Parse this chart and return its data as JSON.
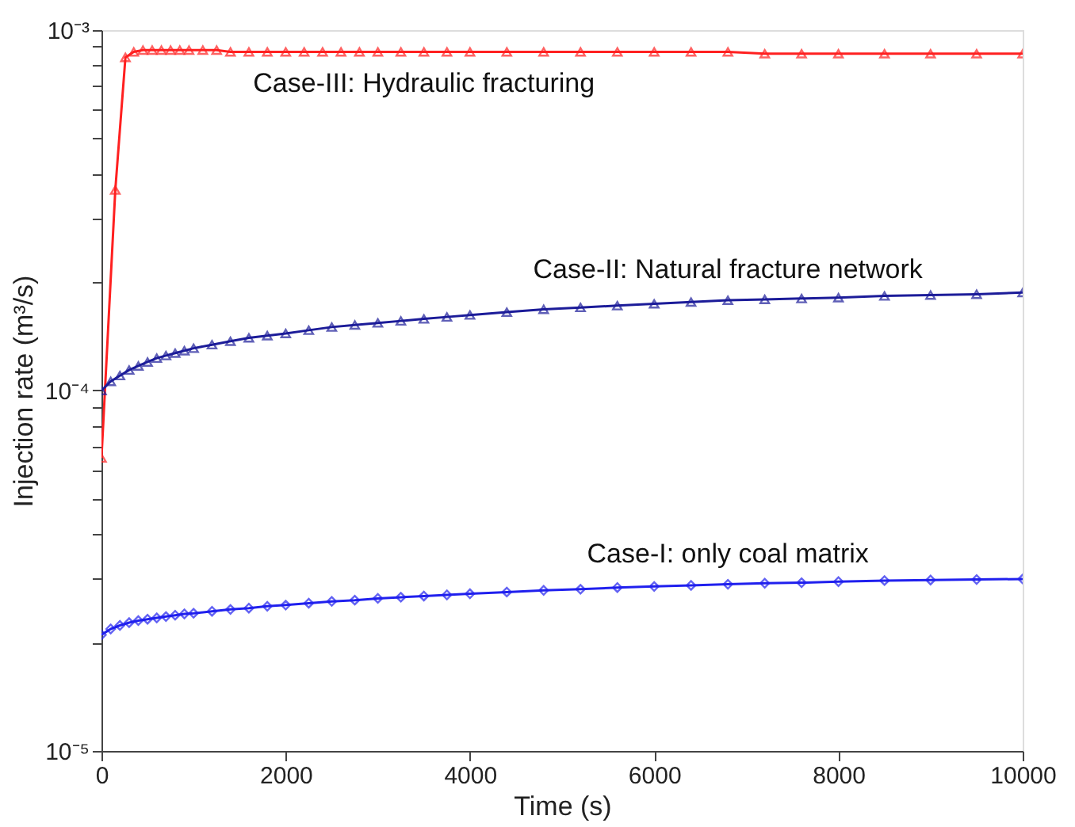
{
  "chart_data": {
    "type": "line",
    "xlabel": "Time (s)",
    "ylabel": "Injection rate (m³/s)",
    "log": "y",
    "grid": false,
    "xlim": [
      0,
      10000
    ],
    "xticks": [
      0,
      2000,
      4000,
      6000,
      8000,
      10000
    ],
    "ylim": [
      1e-05,
      0.001
    ],
    "yticks": [
      {
        "value": 1e-05,
        "label": "10⁻⁵"
      },
      {
        "value": 2e-05,
        "label": null
      },
      {
        "value": 3e-05,
        "label": null
      },
      {
        "value": 4e-05,
        "label": null
      },
      {
        "value": 5e-05,
        "label": null
      },
      {
        "value": 6e-05,
        "label": null
      },
      {
        "value": 7e-05,
        "label": null
      },
      {
        "value": 8e-05,
        "label": null
      },
      {
        "value": 9e-05,
        "label": null
      },
      {
        "value": 0.0001,
        "label": "10⁻⁴"
      },
      {
        "value": 0.0002,
        "label": null
      },
      {
        "value": 0.0003,
        "label": null
      },
      {
        "value": 0.0004,
        "label": null
      },
      {
        "value": 0.0005,
        "label": null
      },
      {
        "value": 0.0006,
        "label": null
      },
      {
        "value": 0.0007,
        "label": null
      },
      {
        "value": 0.0008,
        "label": null
      },
      {
        "value": 0.0009,
        "label": null
      },
      {
        "value": 0.001,
        "label": "10⁻³"
      }
    ],
    "series": [
      {
        "name": "Case-III: Hydraulic fracturing",
        "color": "#ff2020",
        "marker": "triangle",
        "x": [
          0,
          150,
          260,
          350,
          450,
          550,
          650,
          750,
          850,
          950,
          1100,
          1250,
          1400,
          1600,
          1800,
          2000,
          2200,
          2400,
          2600,
          2800,
          3000,
          3250,
          3500,
          3750,
          4000,
          4400,
          4800,
          5200,
          5600,
          6000,
          6400,
          6800,
          7200,
          7600,
          8000,
          8500,
          9000,
          9500,
          10000
        ],
        "values": [
          6.5e-05,
          0.00036,
          0.00084,
          0.00087,
          0.00088,
          0.00088,
          0.00088,
          0.00088,
          0.00088,
          0.00088,
          0.00088,
          0.00088,
          0.00087,
          0.00087,
          0.00087,
          0.00087,
          0.00087,
          0.00087,
          0.00087,
          0.00087,
          0.00087,
          0.00087,
          0.00087,
          0.00087,
          0.00087,
          0.00087,
          0.00087,
          0.00087,
          0.00087,
          0.00087,
          0.00087,
          0.00087,
          0.00086,
          0.00086,
          0.00086,
          0.00086,
          0.00086,
          0.00086,
          0.00086
        ]
      },
      {
        "name": "Case-II: Natural fracture network",
        "color": "#1c1c99",
        "marker": "triangle",
        "x": [
          0,
          100,
          200,
          300,
          400,
          500,
          600,
          700,
          800,
          900,
          1000,
          1200,
          1400,
          1600,
          1800,
          2000,
          2250,
          2500,
          2750,
          3000,
          3250,
          3500,
          3750,
          4000,
          4400,
          4800,
          5200,
          5600,
          6000,
          6400,
          6800,
          7200,
          7600,
          8000,
          8500,
          9000,
          9500,
          10000
        ],
        "values": [
          0.0001,
          0.000106,
          0.00011,
          0.000114,
          0.000117,
          0.00012,
          0.000123,
          0.000125,
          0.000127,
          0.000129,
          0.000131,
          0.000134,
          0.000137,
          0.00014,
          0.000142,
          0.000144,
          0.000147,
          0.00015,
          0.000152,
          0.000154,
          0.000156,
          0.000158,
          0.00016,
          0.000162,
          0.000165,
          0.000168,
          0.00017,
          0.000172,
          0.000174,
          0.000176,
          0.000178,
          0.000179,
          0.00018,
          0.000181,
          0.000183,
          0.000184,
          0.000185,
          0.000187
        ]
      },
      {
        "name": "Case-I: only coal matrix",
        "color": "#2020ee",
        "marker": "diamond",
        "x": [
          0,
          100,
          200,
          300,
          400,
          500,
          600,
          700,
          800,
          900,
          1000,
          1200,
          1400,
          1600,
          1800,
          2000,
          2250,
          2500,
          2750,
          3000,
          3250,
          3500,
          3750,
          4000,
          4400,
          4800,
          5200,
          5600,
          6000,
          6400,
          6800,
          7200,
          7600,
          8000,
          8500,
          9000,
          9500,
          10000
        ],
        "values": [
          2.1e-05,
          2.18e-05,
          2.23e-05,
          2.27e-05,
          2.3e-05,
          2.32e-05,
          2.34e-05,
          2.36e-05,
          2.38e-05,
          2.4e-05,
          2.41e-05,
          2.44e-05,
          2.47e-05,
          2.49e-05,
          2.52e-05,
          2.54e-05,
          2.57e-05,
          2.6e-05,
          2.62e-05,
          2.65e-05,
          2.67e-05,
          2.69e-05,
          2.71e-05,
          2.73e-05,
          2.76e-05,
          2.79e-05,
          2.81e-05,
          2.84e-05,
          2.86e-05,
          2.88e-05,
          2.9e-05,
          2.92e-05,
          2.93e-05,
          2.95e-05,
          2.97e-05,
          2.98e-05,
          2.99e-05,
          3e-05
        ]
      }
    ]
  }
}
